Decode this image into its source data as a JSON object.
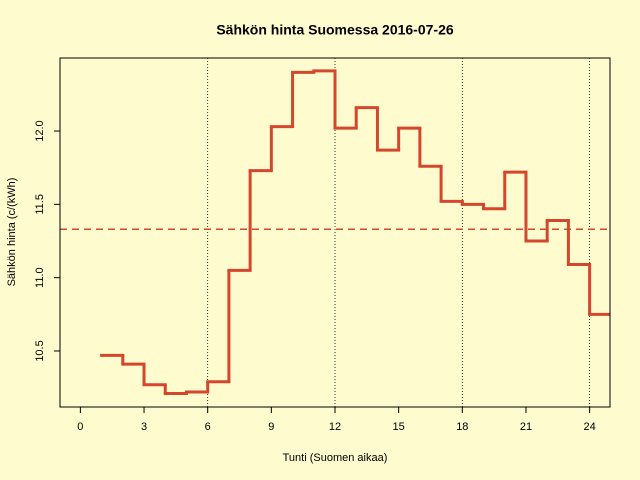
{
  "chart_data": {
    "type": "step",
    "title": "Sähkön hinta Suomessa 2016-07-26",
    "xlabel": "Tunti (Suomen aikaa)",
    "ylabel": "Sähkön hinta (c/(kWh)",
    "x": [
      1,
      2,
      3,
      4,
      5,
      6,
      7,
      8,
      9,
      10,
      11,
      12,
      13,
      14,
      15,
      16,
      17,
      18,
      19,
      20,
      21,
      22,
      23,
      24
    ],
    "values": [
      10.47,
      10.41,
      10.27,
      10.21,
      10.22,
      10.29,
      11.05,
      11.73,
      12.03,
      12.4,
      12.41,
      12.02,
      12.16,
      11.87,
      12.02,
      11.76,
      11.52,
      11.5,
      11.47,
      11.72,
      11.25,
      11.39,
      11.09,
      10.75
    ],
    "color": "#d4472d",
    "mean": 11.33,
    "vlines": [
      6,
      12,
      18,
      24
    ],
    "xlim": [
      -0.96,
      24.96
    ],
    "ylim": [
      10.118,
      12.498
    ],
    "xticks": [
      0,
      3,
      6,
      9,
      12,
      15,
      18,
      21,
      24
    ],
    "yticks": [
      10.5,
      {
        "value": 11,
        "label": "11.0"
      },
      11.5,
      {
        "value": 12,
        "label": "12.0"
      }
    ]
  }
}
